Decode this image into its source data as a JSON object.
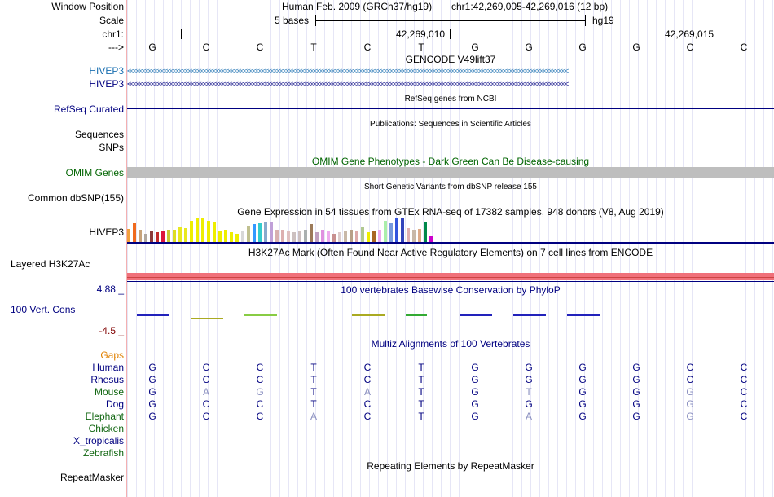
{
  "header": {
    "window_position_label": "Window Position",
    "scale_label": "Scale",
    "chrom_label": "chr1:",
    "arrow_label": "--->",
    "assembly": "Human Feb. 2009 (GRCh37/hg19)",
    "position": "chr1:42,269,005-42,269,016 (12 bp)",
    "scale_text": "5 bases",
    "db": "hg19",
    "coord1": "42,269,010",
    "coord2": "42,269,015"
  },
  "reference_bases": [
    "G",
    "C",
    "C",
    "T",
    "C",
    "T",
    "G",
    "G",
    "G",
    "G",
    "C",
    "C"
  ],
  "tracks": {
    "gencode_title": "GENCODE V49lift37",
    "gencode_labels": [
      "HIVEP3",
      "HIVEP3"
    ],
    "gencode_strand_glyphs": "<<<<<<<<<<<<<<<<<<<<<<<<<<<<<<<<<<<<<<<<<<<<<<<<<<<<<<<<<<<<<<<<<<<<<<<<<<<<<<<<<<<<<<<<<<<<<<<<<<<<<<<<<<<<<<<<<<<<<<<<<<<<<<<<<<<<<<<<<<<<<<<<",
    "refseq_title": "RefSeq genes from NCBI",
    "refseq_label": "RefSeq Curated",
    "pub_title": "Publications: Sequences in Scientific Articles",
    "pub_label": "Sequences",
    "snps_label": "SNPs",
    "omim_title": "OMIM Gene Phenotypes - Dark Green Can Be Disease-causing",
    "omim_label": "OMIM Genes",
    "dbsnp_title": "Short Genetic Variants from dbSNP release 155",
    "dbsnp_label": "Common dbSNP(155)",
    "gtex_title": "Gene Expression in 54 tissues from GTEx RNA-seq of 17382 samples, 948 donors (V8, Aug 2019)",
    "gtex_label": "HIVEP3",
    "h3k27ac_title": "H3K27Ac Mark (Often Found Near Active Regulatory Elements) on 7 cell lines from ENCODE",
    "h3k27ac_label": "Layered H3K27Ac",
    "phylop_title": "100 vertebrates Basewise Conservation by PhyloP",
    "phylop_label": "100 Vert. Cons",
    "phylop_max": "4.88 _",
    "phylop_min": "-4.5 _",
    "multiz_title": "Multiz Alignments of 100 Vertebrates",
    "gaps_label": "Gaps",
    "repeat_title": "Repeating Elements by RepeatMasker",
    "repeat_label": "RepeatMasker"
  },
  "gtex_expression": [
    {
      "v": 0.55,
      "c": "#f2a03c"
    },
    {
      "v": 0.8,
      "c": "#f06a1e"
    },
    {
      "v": 0.5,
      "c": "#c8a37a"
    },
    {
      "v": 0.35,
      "c": "#b0a8a0"
    },
    {
      "v": 0.45,
      "c": "#8b3a3a"
    },
    {
      "v": 0.4,
      "c": "#c22a2a"
    },
    {
      "v": 0.45,
      "c": "#dc143c"
    },
    {
      "v": 0.5,
      "c": "#c8c832"
    },
    {
      "v": 0.5,
      "c": "#dddd22"
    },
    {
      "v": 0.65,
      "c": "#e8e820"
    },
    {
      "v": 0.6,
      "c": "#e8e820"
    },
    {
      "v": 0.9,
      "c": "#eeee00"
    },
    {
      "v": 1.0,
      "c": "#eeee00"
    },
    {
      "v": 1.0,
      "c": "#eeee00"
    },
    {
      "v": 0.9,
      "c": "#eeee00"
    },
    {
      "v": 0.85,
      "c": "#eeee00"
    },
    {
      "v": 0.45,
      "c": "#eeee00"
    },
    {
      "v": 0.5,
      "c": "#eeee00"
    },
    {
      "v": 0.4,
      "c": "#eeee00"
    },
    {
      "v": 0.35,
      "c": "#eeee00"
    },
    {
      "v": 0.45,
      "c": "#d8d8d8"
    },
    {
      "v": 0.7,
      "c": "#c0c090"
    },
    {
      "v": 0.75,
      "c": "#3399ff"
    },
    {
      "v": 0.8,
      "c": "#33cccc"
    },
    {
      "v": 0.85,
      "c": "#88aacc"
    },
    {
      "v": 0.85,
      "c": "#c0a0d8"
    },
    {
      "v": 0.5,
      "c": "#d8b0b0"
    },
    {
      "v": 0.5,
      "c": "#ddb0b0"
    },
    {
      "v": 0.45,
      "c": "#e0c0c0"
    },
    {
      "v": 0.4,
      "c": "#ccc0c0"
    },
    {
      "v": 0.45,
      "c": "#ccbfbf"
    },
    {
      "v": 0.5,
      "c": "#aab0b0"
    },
    {
      "v": 0.75,
      "c": "#9c7a5a"
    },
    {
      "v": 0.4,
      "c": "#c0a0c0"
    },
    {
      "v": 0.5,
      "c": "#e090e0"
    },
    {
      "v": 0.45,
      "c": "#eeaaee"
    },
    {
      "v": 0.35,
      "c": "#c89090"
    },
    {
      "v": 0.4,
      "c": "#ddcccc"
    },
    {
      "v": 0.45,
      "c": "#c8b8a8"
    },
    {
      "v": 0.5,
      "c": "#b8a088"
    },
    {
      "v": 0.45,
      "c": "#ddaaaa"
    },
    {
      "v": 0.65,
      "c": "#b0c890"
    },
    {
      "v": 0.4,
      "c": "#eeee00"
    },
    {
      "v": 0.45,
      "c": "#aa6622"
    },
    {
      "v": 0.5,
      "c": "#eeaaee"
    },
    {
      "v": 0.9,
      "c": "#aaeeaa"
    },
    {
      "v": 0.8,
      "c": "#7799dd"
    },
    {
      "v": 1.0,
      "c": "#3355dd"
    },
    {
      "v": 1.0,
      "c": "#3344bb"
    },
    {
      "v": 0.6,
      "c": "#e0b0b0"
    },
    {
      "v": 0.5,
      "c": "#c8b8a8"
    },
    {
      "v": 0.55,
      "c": "#ddaa88"
    },
    {
      "v": 0.85,
      "c": "#00884a"
    },
    {
      "v": 0.25,
      "c": "#cc00cc"
    }
  ],
  "phylop_segments": [
    {
      "start": 0,
      "end": 0.6,
      "color": "#2222bb"
    },
    {
      "start": 1,
      "end": 1.6,
      "color": "#aaaa22"
    },
    {
      "start": 2,
      "end": 2.6,
      "color": "#88cc44"
    },
    {
      "start": 4,
      "end": 4.6,
      "color": "#aaaa22"
    },
    {
      "start": 5,
      "end": 5.4,
      "color": "#33aa33"
    },
    {
      "start": 6,
      "end": 6.6,
      "color": "#2222bb"
    },
    {
      "start": 7,
      "end": 7.6,
      "color": "#2222bb"
    },
    {
      "start": 8,
      "end": 8.6,
      "color": "#2222bb"
    }
  ],
  "multiz": {
    "species": [
      {
        "name": "Human",
        "color": "#000080",
        "bases": [
          "G",
          "C",
          "C",
          "T",
          "C",
          "T",
          "G",
          "G",
          "G",
          "G",
          "C",
          "C"
        ],
        "dim": [
          0,
          0,
          0,
          0,
          0,
          0,
          0,
          0,
          0,
          0,
          0,
          0
        ]
      },
      {
        "name": "Rhesus",
        "color": "#000080",
        "bases": [
          "G",
          "C",
          "C",
          "T",
          "C",
          "T",
          "G",
          "G",
          "G",
          "G",
          "C",
          "C"
        ],
        "dim": [
          0,
          0,
          0,
          0,
          0,
          0,
          0,
          0,
          0,
          0,
          0,
          0
        ]
      },
      {
        "name": "Mouse",
        "color": "#116611",
        "bases": [
          "G",
          "A",
          "G",
          "T",
          "A",
          "T",
          "G",
          "T",
          "G",
          "G",
          "G",
          "C"
        ],
        "dim": [
          0,
          1,
          1,
          0,
          1,
          0,
          0,
          1,
          0,
          0,
          1,
          0
        ]
      },
      {
        "name": "Dog",
        "color": "#000080",
        "bases": [
          "G",
          "C",
          "C",
          "T",
          "C",
          "T",
          "G",
          "G",
          "G",
          "G",
          "G",
          "C"
        ],
        "dim": [
          0,
          0,
          0,
          0,
          0,
          0,
          0,
          0,
          0,
          0,
          1,
          0
        ]
      },
      {
        "name": "Elephant",
        "color": "#116611",
        "bases": [
          "G",
          "C",
          "C",
          "A",
          "C",
          "T",
          "G",
          "A",
          "G",
          "G",
          "G",
          "C"
        ],
        "dim": [
          0,
          0,
          0,
          1,
          0,
          0,
          0,
          1,
          0,
          0,
          1,
          0
        ]
      },
      {
        "name": "Chicken",
        "color": "#116611",
        "bases": [],
        "dim": []
      },
      {
        "name": "X_tropicalis",
        "color": "#000080",
        "bases": [],
        "dim": []
      },
      {
        "name": "Zebrafish",
        "color": "#116611",
        "bases": [],
        "dim": []
      }
    ]
  },
  "colors": {
    "track_navy": "#000080",
    "gencode_blue": "#1a6fb0",
    "omim_green": "#006400",
    "phylop_max": "#000080",
    "phylop_min": "#800000",
    "gaps_orange": "#e08000",
    "h3k27ac_pink": "#f0707a"
  }
}
